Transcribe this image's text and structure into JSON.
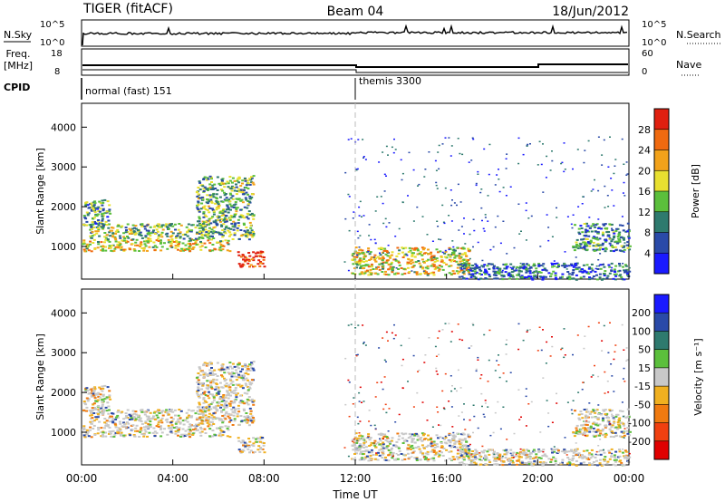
{
  "header": {
    "station": "TIGER (fitACF)",
    "beam": "Beam 04",
    "date": "18/Jun/2012"
  },
  "top_panels": {
    "nsky_label": "N.Sky",
    "nsky_left_ticks": [
      "10^5",
      "10^0"
    ],
    "nsearch_label": "N.Search",
    "nsearch_right_ticks": [
      "10^5",
      "10^0"
    ],
    "freq_label": "Freq.",
    "freq_unit": "[MHz]",
    "freq_ticks": [
      "18",
      "8"
    ],
    "nave_label": "Nave",
    "nave_ticks": [
      "60",
      "0"
    ],
    "cpid_label": "CPID",
    "cpid_segments": [
      {
        "label": "normal (fast) 151",
        "start_hour": 0
      },
      {
        "label": "themis 3300",
        "start_hour": 12
      }
    ]
  },
  "x_axis": {
    "label": "Time UT",
    "ticks": [
      "00:00",
      "04:00",
      "08:00",
      "12:00",
      "16:00",
      "20:00",
      "00:00"
    ]
  },
  "chart_data": [
    {
      "type": "heatmap",
      "name": "power",
      "ylabel": "Slant Range [km]",
      "ylim": [
        180,
        4600
      ],
      "yticks": [
        1000,
        2000,
        3000,
        4000
      ],
      "xlim": [
        0,
        24
      ],
      "colorbar": {
        "label": "Power [dB]",
        "tick_labels": [
          "4",
          "8",
          "12",
          "16",
          "20",
          "24",
          "28"
        ],
        "range": [
          0,
          30
        ],
        "colors": [
          "#1a1aff",
          "#2a4aa8",
          "#2e7a6e",
          "#5bbf3c",
          "#e8e030",
          "#f2a21a",
          "#f06a10",
          "#e02010"
        ]
      },
      "echo_regions": [
        {
          "t": [
            0.0,
            1.2
          ],
          "r": [
            1500,
            2200
          ],
          "level": 0.35
        },
        {
          "t": [
            0.0,
            6.5
          ],
          "r": [
            900,
            1200
          ],
          "level": 0.6
        },
        {
          "t": [
            0.3,
            5.5
          ],
          "r": [
            1200,
            1600
          ],
          "level": 0.45
        },
        {
          "t": [
            5.0,
            7.5
          ],
          "r": [
            1200,
            2800
          ],
          "level": 0.4
        },
        {
          "t": [
            6.8,
            8.0
          ],
          "r": [
            500,
            900
          ],
          "level": 0.9
        },
        {
          "t": [
            11.8,
            17.0
          ],
          "r": [
            300,
            1000
          ],
          "level": 0.6
        },
        {
          "t": [
            16.5,
            24.0
          ],
          "r": [
            180,
            600
          ],
          "level": 0.25
        },
        {
          "t": [
            21.5,
            24.0
          ],
          "r": [
            900,
            1600
          ],
          "level": 0.3
        }
      ]
    },
    {
      "type": "heatmap",
      "name": "velocity",
      "ylabel": "Slant Range [km]",
      "ylim": [
        180,
        4600
      ],
      "yticks": [
        1000,
        2000,
        3000,
        4000
      ],
      "xlim": [
        0,
        24
      ],
      "colorbar": {
        "label": "Velocity [m s⁻¹]",
        "tick_labels": [
          "200",
          "100",
          "50",
          "15",
          "-15",
          "-50",
          "-100",
          "-200"
        ],
        "colors": [
          "#1a1aff",
          "#2a4aa8",
          "#2e7a6e",
          "#5bbf3c",
          "#c8c8c8",
          "#f0b020",
          "#f07a10",
          "#f04010",
          "#e00000"
        ]
      }
    }
  ]
}
